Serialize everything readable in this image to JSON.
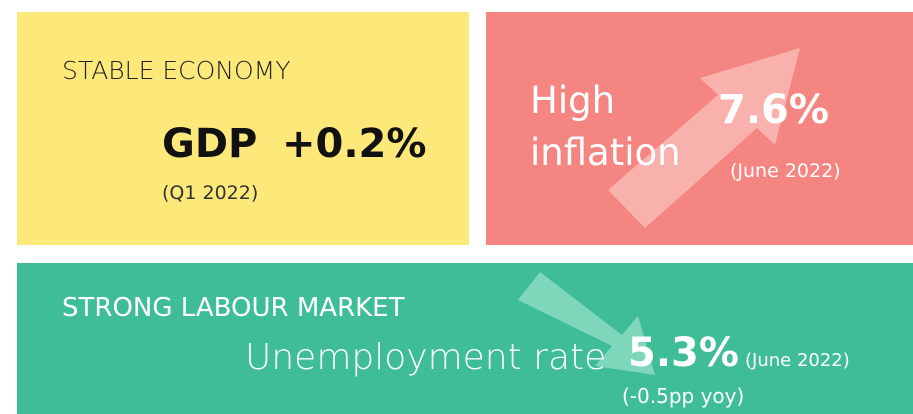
{
  "panels": [
    {
      "title": "STABLE ECONOMY",
      "label": "GDP",
      "value": "+0.2%",
      "note": "(Q1 2022)"
    },
    {
      "title_lines": [
        "High",
        "inflation"
      ],
      "value": "7.6%",
      "note": "(June 2022)"
    },
    {
      "title": "STRONG LABOUR MARKET",
      "label": "Unemployment rate",
      "value": "5.3%",
      "note": "(June 2022)",
      "change": "(-0.5pp yoy)"
    }
  ]
}
